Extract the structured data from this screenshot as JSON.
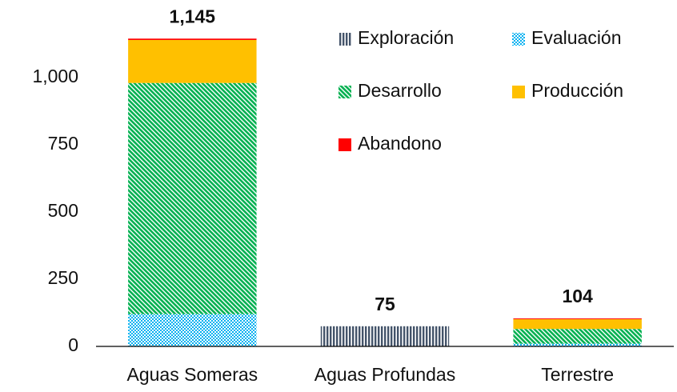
{
  "chart_data": {
    "type": "stacked-bar",
    "categories": [
      "Aguas Someras",
      "Aguas Profundas",
      "Terrestre"
    ],
    "series": [
      {
        "name": "Exploración",
        "color": "#44546a",
        "pattern": "vertical-lines",
        "values": [
          0,
          75,
          0
        ]
      },
      {
        "name": "Evaluación",
        "color": "#00b0f0",
        "pattern": "dots",
        "values": [
          120,
          0,
          10
        ]
      },
      {
        "name": "Desarrollo",
        "color": "#00b050",
        "pattern": "diagonal-lines",
        "values": [
          860,
          0,
          55
        ]
      },
      {
        "name": "Producción",
        "color": "#ffc000",
        "pattern": "solid",
        "values": [
          160,
          0,
          36
        ]
      },
      {
        "name": "Abandono",
        "color": "#ff0000",
        "pattern": "solid",
        "values": [
          5,
          0,
          3
        ]
      }
    ],
    "totals": [
      {
        "value": 1145,
        "label": "1,145"
      },
      75,
      104
    ],
    "ylim": [
      0,
      1250
    ],
    "yticks": [
      0,
      250,
      500,
      750,
      {
        "value": 1000,
        "label": "1,000"
      }
    ],
    "grid": false
  }
}
